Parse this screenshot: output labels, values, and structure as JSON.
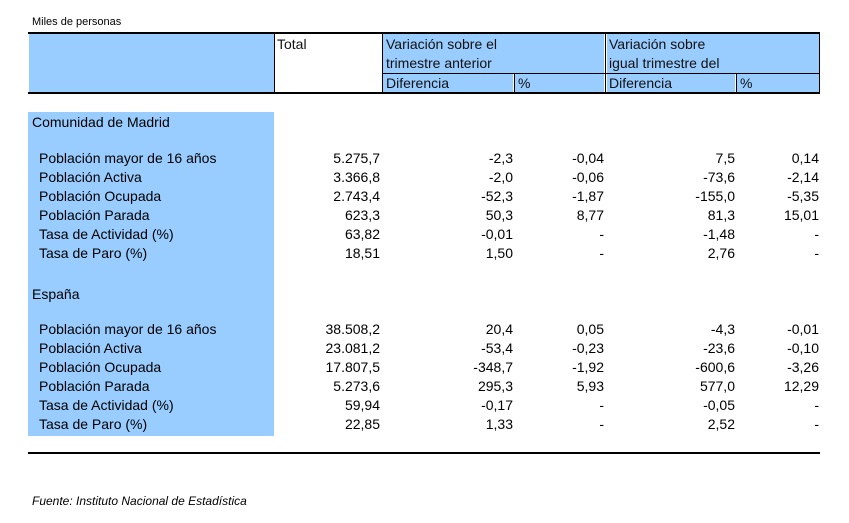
{
  "caption": "Miles de personas",
  "header": {
    "total": "Total",
    "group1_line1": "Variación sobre el",
    "group1_line2": "trimestre anterior",
    "group2_line1": "Variación sobre",
    "group2_line2": "igual trimestre del",
    "diff": "Diferencia",
    "pct": "%"
  },
  "sections": [
    {
      "name": "Comunidad de Madrid",
      "rows": [
        {
          "label": "Población mayor de 16 años",
          "total": "5.275,7",
          "d1": "-2,3",
          "p1": "-0,04",
          "d2": "7,5",
          "p2": "0,14"
        },
        {
          "label": "Población Activa",
          "total": "3.366,8",
          "d1": "-2,0",
          "p1": "-0,06",
          "d2": "-73,6",
          "p2": "-2,14"
        },
        {
          "label": "Población Ocupada",
          "total": "2.743,4",
          "d1": "-52,3",
          "p1": "-1,87",
          "d2": "-155,0",
          "p2": "-5,35"
        },
        {
          "label": "Población Parada",
          "total": "623,3",
          "d1": "50,3",
          "p1": "8,77",
          "d2": "81,3",
          "p2": "15,01"
        },
        {
          "label": "Tasa de Actividad (%)",
          "total": "63,82",
          "d1": "-0,01",
          "p1": "-",
          "d2": "-1,48",
          "p2": "-"
        },
        {
          "label": "Tasa de Paro (%)",
          "total": "18,51",
          "d1": "1,50",
          "p1": "-",
          "d2": "2,76",
          "p2": "-"
        }
      ]
    },
    {
      "name": "España",
      "rows": [
        {
          "label": "Población mayor de 16 años",
          "total": "38.508,2",
          "d1": "20,4",
          "p1": "0,05",
          "d2": "-4,3",
          "p2": "-0,01"
        },
        {
          "label": "Población Activa",
          "total": "23.081,2",
          "d1": "-53,4",
          "p1": "-0,23",
          "d2": "-23,6",
          "p2": "-0,10"
        },
        {
          "label": "Población Ocupada",
          "total": "17.807,5",
          "d1": "-348,7",
          "p1": "-1,92",
          "d2": "-600,6",
          "p2": "-3,26"
        },
        {
          "label": "Población Parada",
          "total": "5.273,6",
          "d1": "295,3",
          "p1": "5,93",
          "d2": "577,0",
          "p2": "12,29"
        },
        {
          "label": "Tasa de Actividad (%)",
          "total": "59,94",
          "d1": "-0,17",
          "p1": "-",
          "d2": "-0,05",
          "p2": "-"
        },
        {
          "label": "Tasa de Paro (%)",
          "total": "22,85",
          "d1": "1,33",
          "p1": "-",
          "d2": "2,52",
          "p2": "-"
        }
      ]
    }
  ],
  "source": "Fuente: Instituto Nacional de Estadística"
}
